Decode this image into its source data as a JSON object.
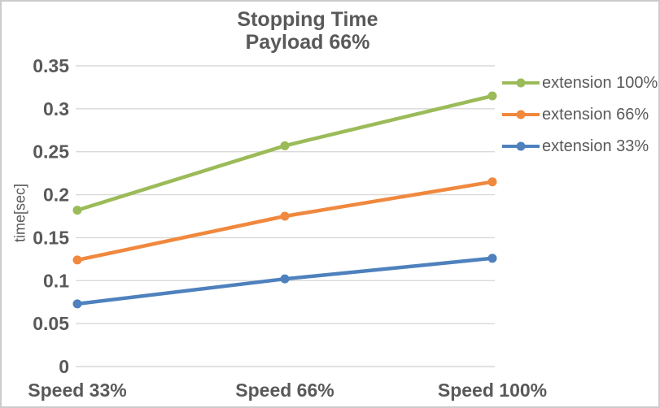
{
  "chart_data": {
    "type": "line",
    "title": "Stopping Time",
    "subtitle": "Payload 66%",
    "categories": [
      "Speed 33%",
      "Speed 66%",
      "Speed 100%"
    ],
    "series": [
      {
        "name": "extension 100%",
        "color": "#9BBB59",
        "values": [
          0.182,
          0.257,
          0.315
        ]
      },
      {
        "name": "extension 66%",
        "color": "#F0883E",
        "values": [
          0.124,
          0.175,
          0.215
        ]
      },
      {
        "name": "extension 33%",
        "color": "#4E81BD",
        "values": [
          0.073,
          0.102,
          0.126
        ]
      }
    ],
    "xlabel": "",
    "ylabel": "time[sec]",
    "ylim": [
      0,
      0.35
    ],
    "yticks": [
      0,
      0.05,
      0.1,
      0.15,
      0.2,
      0.25,
      0.3,
      0.35
    ],
    "ytick_labels": [
      "0",
      "0.05",
      "0.1",
      "0.15",
      "0.2",
      "0.25",
      "0.3",
      "0.35"
    ],
    "grid": true,
    "legend_position": "right",
    "marker": "circle"
  },
  "colors": {
    "grid": "#D9D9D9",
    "text": "#595959",
    "border": "#CBCBCB",
    "background": "#FFFFFF"
  }
}
